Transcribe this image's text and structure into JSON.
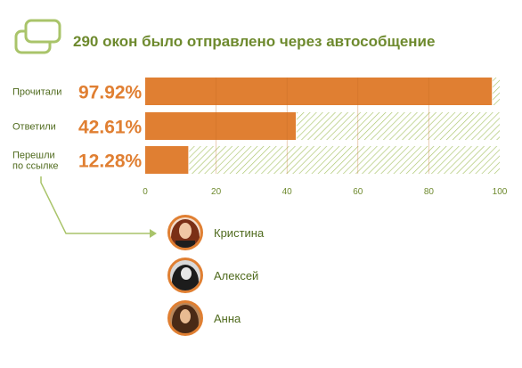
{
  "title": "290 окон было отправлено через автособщение",
  "icon": "chat-windows-icon",
  "colors": {
    "title": "#6e8a2e",
    "bar": "#e07f32",
    "bar_remainder": "#a9c46a",
    "percent_text": "#e07f32",
    "label_text": "#4f6a1d",
    "tick_text": "#6e8a2e",
    "grid": "#c56a22",
    "connector": "#a9c46a",
    "avatar_ring": "#e07f32"
  },
  "chart_data": {
    "type": "bar",
    "orientation": "horizontal",
    "title": "290 окон было отправлено через автособщение",
    "categories": [
      "Прочитали",
      "Ответили",
      "Перешли по ссылке"
    ],
    "category_lines": [
      [
        "Прочитали"
      ],
      [
        "Ответили"
      ],
      [
        "Перешли",
        "по ссылке"
      ]
    ],
    "values": [
      97.92,
      42.61,
      12.28
    ],
    "value_labels": [
      "97.92%",
      "42.61%",
      "12.28%"
    ],
    "xlim": [
      0,
      100
    ],
    "xticks": [
      0,
      20,
      40,
      60,
      80,
      100
    ],
    "xtick_labels": [
      "0",
      "20",
      "40",
      "60",
      "80",
      "100"
    ],
    "remainder_style": "hatched",
    "grid": true,
    "xlabel": "",
    "ylabel": ""
  },
  "users": [
    {
      "name": "Кристина",
      "avatar": "avatar-kristina"
    },
    {
      "name": "Алексей",
      "avatar": "avatar-aleksey"
    },
    {
      "name": "Анна",
      "avatar": "avatar-anna"
    }
  ]
}
